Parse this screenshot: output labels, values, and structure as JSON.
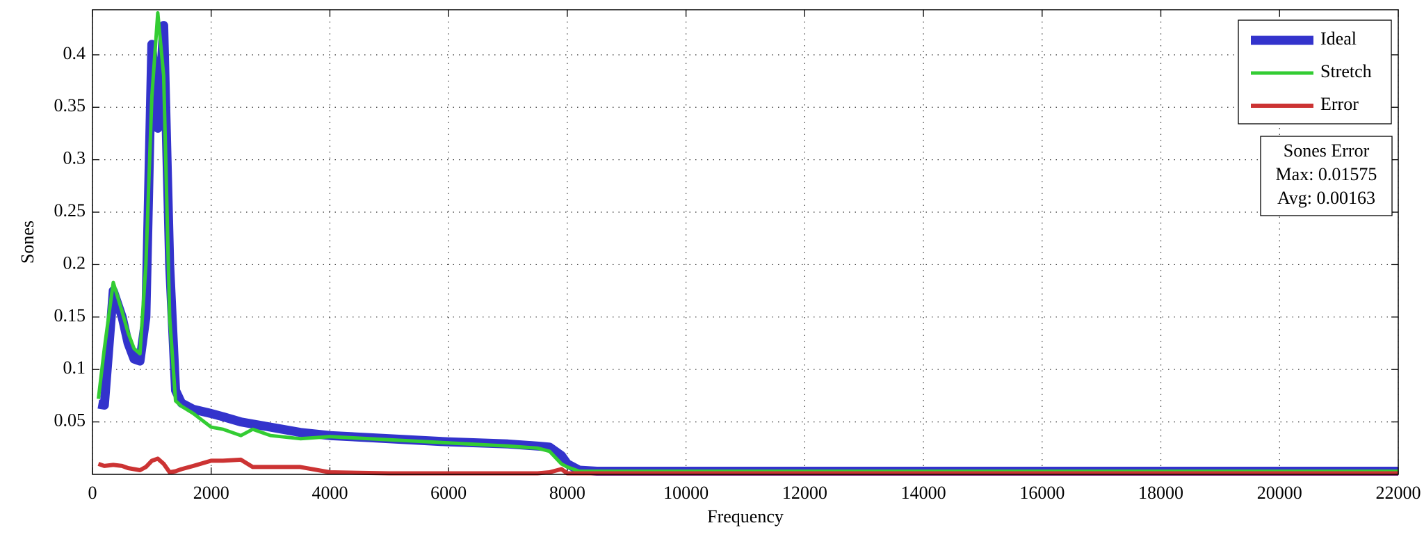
{
  "chart_data": {
    "type": "line",
    "xlabel": "Frequency",
    "ylabel": "Sones",
    "x": [
      100,
      200,
      350,
      500,
      600,
      700,
      800,
      900,
      1000,
      1100,
      1200,
      1300,
      1400,
      1500,
      1700,
      2000,
      2200,
      2500,
      2700,
      3000,
      3500,
      4000,
      5000,
      6000,
      7000,
      7500,
      7700,
      7900,
      8000,
      8200,
      8500,
      10000,
      15000,
      22000
    ],
    "series": [
      {
        "name": "Ideal",
        "color": "#3333cc",
        "width": 13,
        "values": [
          0.067,
          0.066,
          0.175,
          0.15,
          0.125,
          0.11,
          0.108,
          0.15,
          0.41,
          0.33,
          0.428,
          0.2,
          0.08,
          0.068,
          0.062,
          0.058,
          0.055,
          0.05,
          0.048,
          0.045,
          0.04,
          0.037,
          0.034,
          0.031,
          0.029,
          0.027,
          0.026,
          0.018,
          0.01,
          0.004,
          0.003,
          0.003,
          0.003,
          0.003
        ]
      },
      {
        "name": "Stretch",
        "color": "#33cc33",
        "width": 5,
        "values": [
          0.072,
          0.12,
          0.183,
          0.155,
          0.135,
          0.12,
          0.115,
          0.2,
          0.36,
          0.44,
          0.38,
          0.15,
          0.07,
          0.065,
          0.058,
          0.045,
          0.043,
          0.037,
          0.043,
          0.037,
          0.034,
          0.036,
          0.033,
          0.03,
          0.027,
          0.025,
          0.022,
          0.01,
          0.007,
          0.003,
          0.003,
          0.003,
          0.003,
          0.003
        ]
      },
      {
        "name": "Error",
        "color": "#cc3333",
        "width": 6,
        "values": [
          0.01,
          0.008,
          0.009,
          0.008,
          0.006,
          0.005,
          0.004,
          0.007,
          0.013,
          0.015,
          0.01,
          0.002,
          0.003,
          0.005,
          0.008,
          0.013,
          0.013,
          0.014,
          0.007,
          0.007,
          0.007,
          0.002,
          0.001,
          0.001,
          0.001,
          0.001,
          0.002,
          0.005,
          0.001,
          0.001,
          0.001,
          0.001,
          0.001,
          0.001
        ]
      }
    ],
    "xlim": [
      0,
      22000
    ],
    "xticks": [
      0,
      2000,
      4000,
      6000,
      8000,
      10000,
      12000,
      14000,
      16000,
      18000,
      20000,
      22000
    ],
    "ylim": [
      0,
      0.443
    ],
    "yticks": [
      0.05,
      0.1,
      0.15,
      0.2,
      0.25,
      0.3,
      0.35,
      0.4
    ],
    "grid": true,
    "legend": "upper right",
    "annotation": [
      "Sones Error",
      "Max: 0.01575",
      "Avg: 0.00163"
    ]
  }
}
